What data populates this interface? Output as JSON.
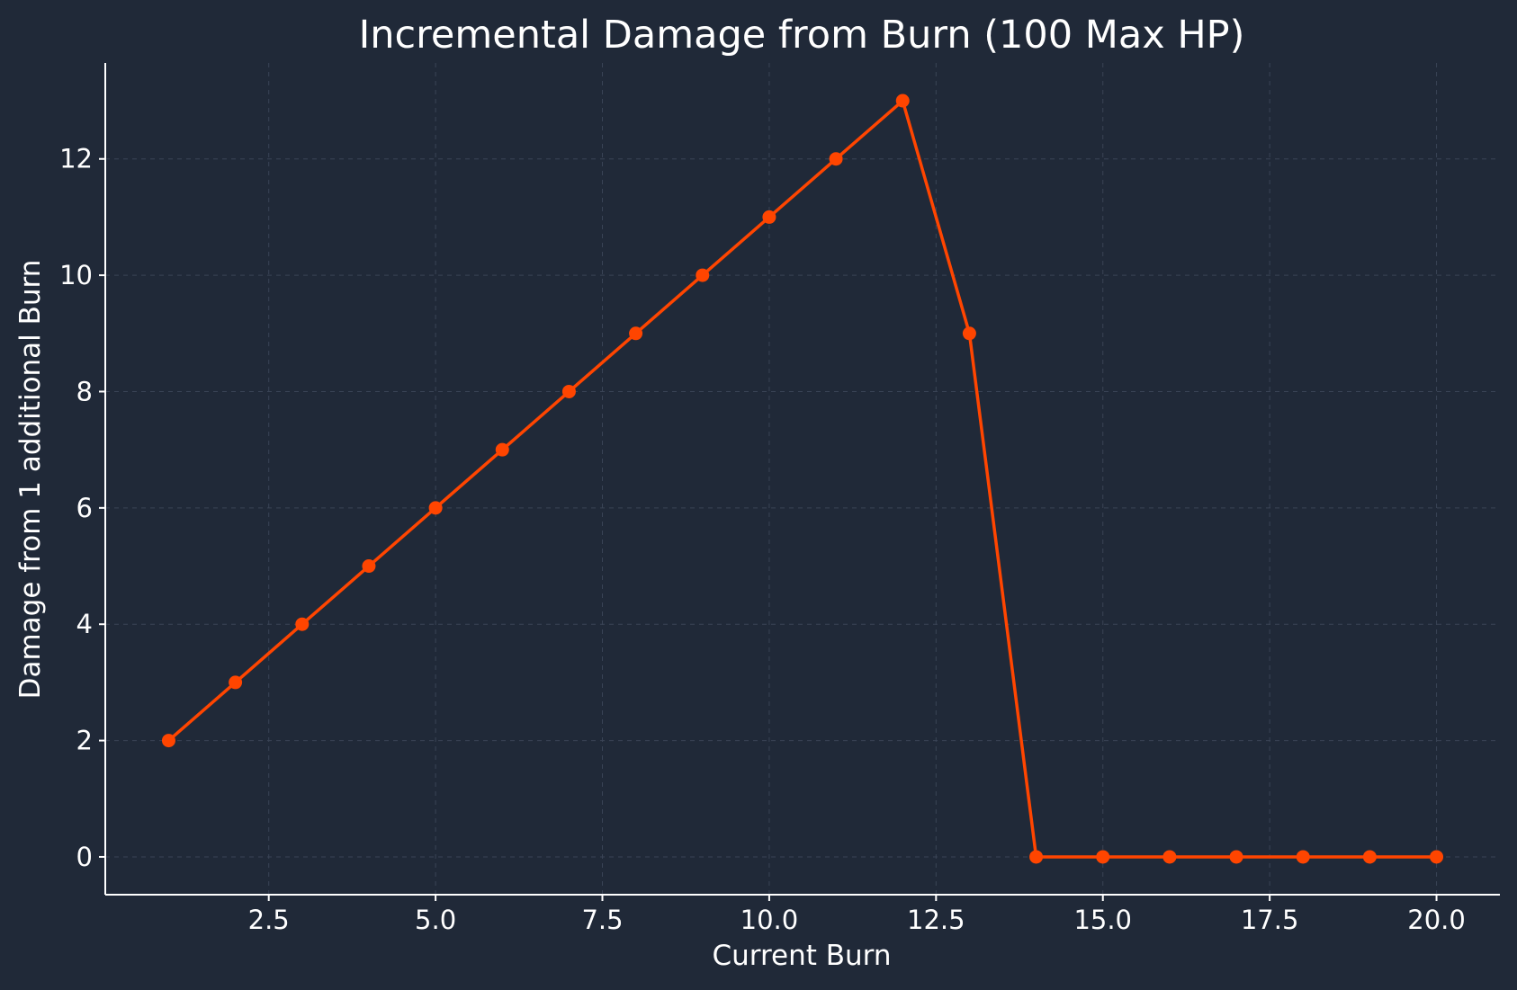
{
  "chart_data": {
    "type": "line",
    "title": "Incremental Damage from Burn (100 Max HP)",
    "xlabel": "Current Burn",
    "ylabel": "Damage from 1 additional Burn",
    "xlim": [
      0.05,
      20.95
    ],
    "ylim": [
      -0.65,
      13.65
    ],
    "x_ticks": [
      2.5,
      5.0,
      7.5,
      10.0,
      12.5,
      15.0,
      17.5,
      20.0
    ],
    "x_tick_labels": [
      "2.5",
      "5.0",
      "7.5",
      "10.0",
      "12.5",
      "15.0",
      "17.5",
      "20.0"
    ],
    "y_ticks": [
      0,
      2,
      4,
      6,
      8,
      10,
      12
    ],
    "y_tick_labels": [
      "0",
      "2",
      "4",
      "6",
      "8",
      "10",
      "12"
    ],
    "grid": true,
    "series": [
      {
        "color": "#ff4500",
        "x": [
          1,
          2,
          3,
          4,
          5,
          6,
          7,
          8,
          9,
          10,
          11,
          12,
          13,
          14,
          15,
          16,
          17,
          18,
          19,
          20
        ],
        "y": [
          2,
          3,
          4,
          5,
          6,
          7,
          8,
          9,
          10,
          11,
          12,
          13,
          9,
          0,
          0,
          0,
          0,
          0,
          0,
          0
        ]
      }
    ]
  }
}
